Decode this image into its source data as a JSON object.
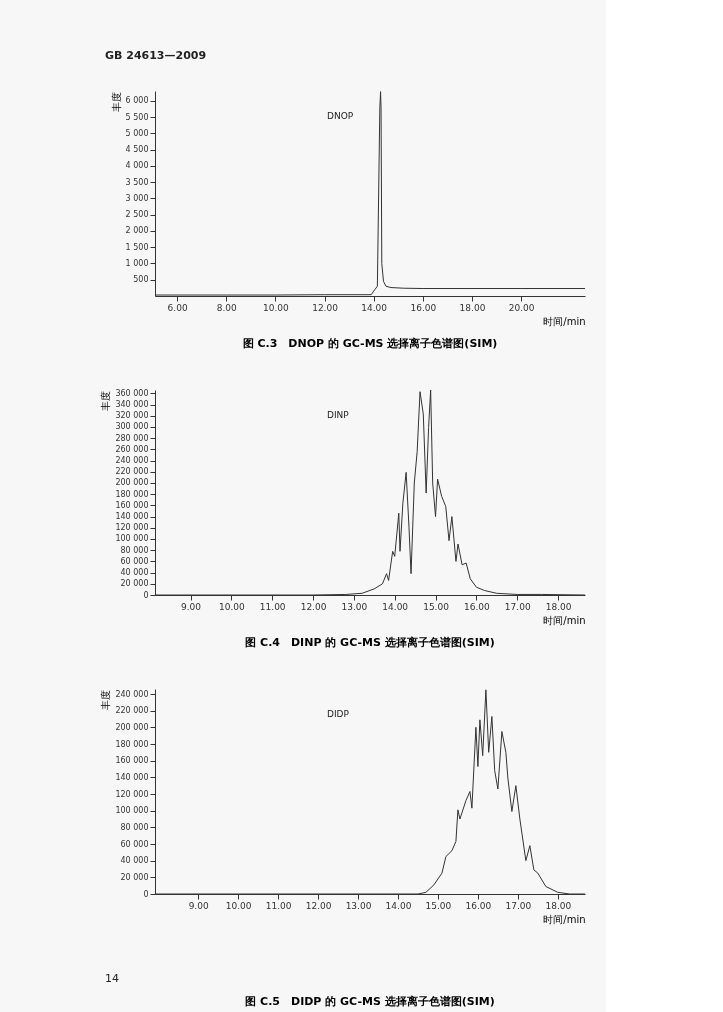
{
  "chart_data": [
    {
      "type": "line",
      "title": "图 C.3　DNOP 的 GC-MS 选择离子色谱图(SIM)",
      "xlabel": "时间/min",
      "ylabel": "丰度",
      "grid": false,
      "marker": "none",
      "line_style": "solid",
      "annotations": [
        "GB 24613—2009",
        "DNOP"
      ],
      "xlim": [
        5.1,
        22.6
      ],
      "xticks": [
        {
          "value": 6,
          "label": "6.00"
        },
        {
          "value": 8,
          "label": "8.00"
        },
        {
          "value": 10,
          "label": "10.00"
        },
        {
          "value": 12,
          "label": "12.00"
        },
        {
          "value": 14,
          "label": "14.00"
        },
        {
          "value": 16,
          "label": "16.00"
        },
        {
          "value": 18,
          "label": "18.00"
        },
        {
          "value": 20,
          "label": "20.00"
        }
      ],
      "ylim": [
        0,
        6300
      ],
      "yticks": [
        500,
        {
          "value": 1000,
          "label": "1 000"
        },
        {
          "value": 1500,
          "label": "1 500"
        },
        {
          "value": 2000,
          "label": "2 000"
        },
        {
          "value": 2500,
          "label": "2 500"
        },
        {
          "value": 3000,
          "label": "3 000"
        },
        {
          "value": 3500,
          "label": "3 500"
        },
        {
          "value": 4000,
          "label": "4 000"
        },
        {
          "value": 4500,
          "label": "4 500"
        },
        {
          "value": 5000,
          "label": "5 000"
        },
        {
          "value": 5500,
          "label": "5 500"
        },
        {
          "value": 6000,
          "label": "6 000"
        }
      ],
      "series": [
        {
          "color": "#333333",
          "x": [
            5.1,
            8.0,
            10.0,
            12.0,
            13.9,
            14.0,
            14.05,
            14.15,
            14.25,
            14.28,
            14.3,
            14.33,
            14.4,
            14.5,
            14.7,
            15.2,
            16.0,
            18.0,
            20.0,
            22.6
          ],
          "values": [
            30,
            30,
            30,
            40,
            40,
            150,
            200,
            300,
            5780,
            6280,
            5780,
            1000,
            450,
            300,
            260,
            240,
            230,
            230,
            230,
            230
          ]
        }
      ]
    },
    {
      "type": "line",
      "title": "图 C.4　DINP 的 GC-MS 选择离子色谱图(SIM)",
      "xlabel": "时间/min",
      "ylabel": "丰度",
      "grid": false,
      "marker": "none",
      "line_style": "solid",
      "annotations": [
        "DINP"
      ],
      "xlim": [
        8.13,
        18.66
      ],
      "xticks": [
        {
          "value": 9,
          "label": "9.00"
        },
        {
          "value": 10,
          "label": "10.00"
        },
        {
          "value": 11,
          "label": "11.00"
        },
        {
          "value": 12,
          "label": "12.00"
        },
        {
          "value": 13,
          "label": "13.00"
        },
        {
          "value": 14,
          "label": "14.00"
        },
        {
          "value": 15,
          "label": "15.00"
        },
        {
          "value": 16,
          "label": "16.00"
        },
        {
          "value": 17,
          "label": "17.00"
        },
        {
          "value": 18,
          "label": "18.00"
        }
      ],
      "ylim": [
        0,
        366000
      ],
      "yticks": [
        0,
        {
          "value": 20000,
          "label": "20 000"
        },
        {
          "value": 40000,
          "label": "40 000"
        },
        {
          "value": 60000,
          "label": "60 000"
        },
        {
          "value": 80000,
          "label": "80 000"
        },
        {
          "value": 100000,
          "label": "100 000"
        },
        {
          "value": 120000,
          "label": "120 000"
        },
        {
          "value": 140000,
          "label": "140 000"
        },
        {
          "value": 160000,
          "label": "160 000"
        },
        {
          "value": 180000,
          "label": "180 000"
        },
        {
          "value": 200000,
          "label": "200 000"
        },
        {
          "value": 220000,
          "label": "220 000"
        },
        {
          "value": 240000,
          "label": "240 000"
        },
        {
          "value": 260000,
          "label": "260 000"
        },
        {
          "value": 280000,
          "label": "280 000"
        },
        {
          "value": 300000,
          "label": "300 000"
        },
        {
          "value": 320000,
          "label": "320 000"
        },
        {
          "value": 340000,
          "label": "340 000"
        },
        {
          "value": 360000,
          "label": "360 000"
        }
      ],
      "series": [
        {
          "color": "#333333",
          "x": [
            8.13,
            10.0,
            12.0,
            12.8,
            13.2,
            13.5,
            13.7,
            13.8,
            13.85,
            13.95,
            14.0,
            14.1,
            14.13,
            14.2,
            14.28,
            14.35,
            14.4,
            14.48,
            14.55,
            14.62,
            14.7,
            14.77,
            14.83,
            14.88,
            14.93,
            15.0,
            15.05,
            15.15,
            15.25,
            15.33,
            15.4,
            15.5,
            15.55,
            15.65,
            15.75,
            15.85,
            16.0,
            16.2,
            16.5,
            17.0,
            17.6,
            18.66
          ],
          "values": [
            0,
            0,
            0,
            1000,
            3000,
            11000,
            20000,
            38000,
            26000,
            78000,
            69000,
            146000,
            78000,
            164000,
            219000,
            121000,
            38000,
            200000,
            256000,
            363000,
            323000,
            182000,
            299000,
            366000,
            200000,
            140000,
            207000,
            176000,
            158000,
            97000,
            140000,
            60000,
            91000,
            54000,
            57000,
            29000,
            14000,
            8000,
            3000,
            1000,
            1000,
            0
          ]
        }
      ]
    },
    {
      "type": "line",
      "title": "图 C.5　DIDP 的 GC-MS 选择离子色谱图(SIM)",
      "xlabel": "时间/min",
      "ylabel": "丰度",
      "grid": false,
      "marker": "none",
      "line_style": "solid",
      "annotations": [
        "DIDP",
        "14"
      ],
      "xlim": [
        7.92,
        18.68
      ],
      "xticks": [
        {
          "value": 9,
          "label": "9.00"
        },
        {
          "value": 10,
          "label": "10.00"
        },
        {
          "value": 11,
          "label": "11.00"
        },
        {
          "value": 12,
          "label": "12.00"
        },
        {
          "value": 13,
          "label": "13.00"
        },
        {
          "value": 14,
          "label": "14.00"
        },
        {
          "value": 15,
          "label": "15.00"
        },
        {
          "value": 16,
          "label": "16.00"
        },
        {
          "value": 17,
          "label": "17.00"
        },
        {
          "value": 18,
          "label": "18.00"
        }
      ],
      "ylim": [
        0,
        246000
      ],
      "yticks": [
        0,
        {
          "value": 20000,
          "label": "20 000"
        },
        {
          "value": 40000,
          "label": "40 000"
        },
        {
          "value": 60000,
          "label": "60 000"
        },
        {
          "value": 80000,
          "label": "80 000"
        },
        {
          "value": 100000,
          "label": "100 000"
        },
        {
          "value": 120000,
          "label": "120 000"
        },
        {
          "value": 140000,
          "label": "140 000"
        },
        {
          "value": 160000,
          "label": "160 000"
        },
        {
          "value": 180000,
          "label": "180 000"
        },
        {
          "value": 200000,
          "label": "200 000"
        },
        {
          "value": 220000,
          "label": "220 000"
        },
        {
          "value": 240000,
          "label": "240 000"
        }
      ],
      "series": [
        {
          "color": "#333333",
          "x": [
            7.92,
            10.0,
            12.0,
            14.5,
            14.7,
            14.9,
            15.1,
            15.2,
            15.35,
            15.45,
            15.5,
            15.55,
            15.7,
            15.8,
            15.85,
            15.95,
            16.0,
            16.05,
            16.12,
            16.2,
            16.27,
            16.35,
            16.42,
            16.5,
            16.6,
            16.7,
            16.75,
            16.85,
            16.95,
            17.05,
            17.2,
            17.3,
            17.4,
            17.5,
            17.7,
            18.0,
            18.3,
            18.68
          ],
          "values": [
            0,
            0,
            0,
            0,
            2000,
            11000,
            25000,
            45000,
            52000,
            63000,
            101000,
            90000,
            112000,
            123000,
            103000,
            200000,
            153000,
            209000,
            166000,
            245000,
            170000,
            213000,
            148000,
            126000,
            195000,
            170000,
            139000,
            99000,
            130000,
            90000,
            40000,
            58000,
            29000,
            25000,
            9000,
            2000,
            0,
            0
          ]
        }
      ]
    }
  ]
}
